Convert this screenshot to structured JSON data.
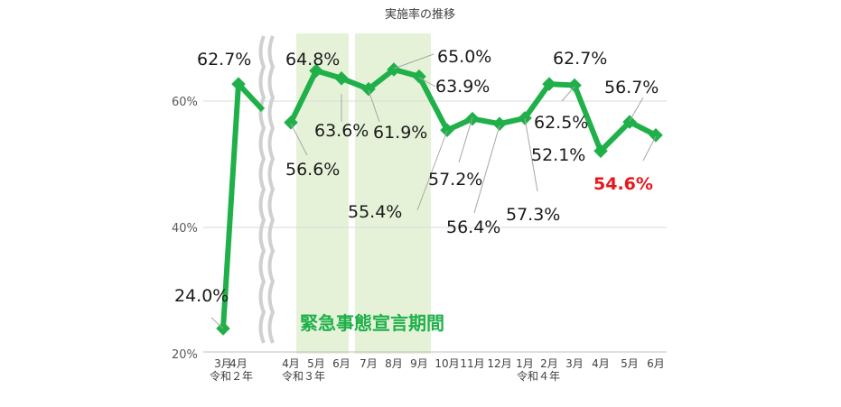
{
  "chart_data": {
    "type": "line",
    "title": "実施率の推移",
    "yticks": [
      "60%",
      "40%",
      "20%"
    ],
    "ylim": [
      20,
      70
    ],
    "grid": true,
    "line_color": "#1fb04a",
    "highlight_color": "#e8161b",
    "band_color": "#e6f2d8",
    "band_label": "緊急事態宣言期間",
    "x_labels": [
      "3月",
      "4月",
      "4月",
      "5月",
      "6月",
      "7月",
      "8月",
      "9月",
      "10月",
      "11月",
      "12月",
      "1月",
      "2月",
      "3月",
      "4月",
      "5月",
      "6月"
    ],
    "era_labels": [
      "令和２年",
      "令和３年",
      "令和４年"
    ],
    "segments": [
      {
        "points": [
          {
            "x": "3月",
            "y": 24.0,
            "label": "24.0%"
          },
          {
            "x": "4月",
            "y": 62.7,
            "label": "62.7%"
          }
        ]
      },
      {
        "points": [
          {
            "x": "4月",
            "y": 56.6,
            "label": "56.6%"
          },
          {
            "x": "5月",
            "y": 64.8,
            "label": "64.8%"
          },
          {
            "x": "6月",
            "y": 63.6,
            "label": "63.6%"
          },
          {
            "x": "7月",
            "y": 61.9,
            "label": "61.9%"
          },
          {
            "x": "8月",
            "y": 65.0,
            "label": "65.0%"
          },
          {
            "x": "9月",
            "y": 63.9,
            "label": "63.9%"
          },
          {
            "x": "10月",
            "y": 55.4,
            "label": "55.4%"
          },
          {
            "x": "11月",
            "y": 57.2,
            "label": "57.2%"
          },
          {
            "x": "12月",
            "y": 56.4,
            "label": "56.4%"
          },
          {
            "x": "1月",
            "y": 57.3,
            "label": "57.3%"
          },
          {
            "x": "2月",
            "y": 62.7,
            "label": "62.7%"
          },
          {
            "x": "3月",
            "y": 62.5,
            "label": "62.5%"
          },
          {
            "x": "4月",
            "y": 52.1,
            "label": "52.1%"
          },
          {
            "x": "5月",
            "y": 56.7,
            "label": "56.7%"
          },
          {
            "x": "6月",
            "y": 54.6,
            "label": "54.6%",
            "highlight": true
          }
        ]
      }
    ]
  }
}
